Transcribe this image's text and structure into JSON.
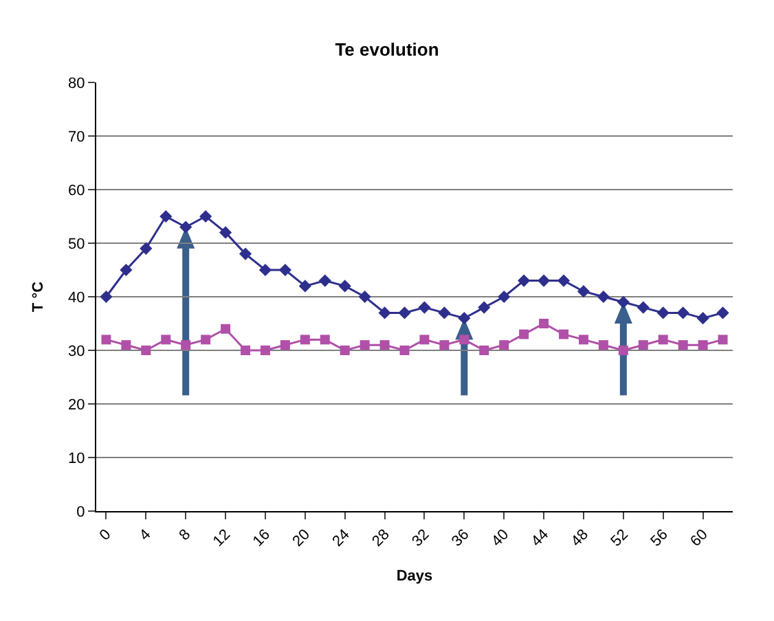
{
  "chart_data": {
    "type": "line",
    "title": "Te evolution",
    "xlabel": "Days",
    "ylabel": "T °C",
    "x": [
      0,
      2,
      4,
      6,
      8,
      10,
      12,
      14,
      16,
      18,
      20,
      22,
      24,
      26,
      28,
      30,
      32,
      34,
      36,
      38,
      40,
      42,
      44,
      46,
      48,
      50,
      52,
      54,
      56,
      58,
      60,
      62
    ],
    "series": [
      {
        "color": "#2e2f8c",
        "marker": "diamond",
        "values": [
          40,
          45,
          49,
          55,
          53,
          55,
          52,
          48,
          45,
          45,
          42,
          43,
          42,
          40,
          37,
          37,
          38,
          37,
          36,
          38,
          40,
          43,
          43,
          43,
          41,
          40,
          39,
          38,
          37,
          37,
          36,
          37
        ]
      },
      {
        "color": "#b050a8",
        "marker": "square",
        "values": [
          32,
          31,
          30,
          32,
          31,
          32,
          34,
          30,
          30,
          31,
          32,
          32,
          30,
          31,
          31,
          30,
          32,
          31,
          32,
          30,
          31,
          33,
          35,
          33,
          32,
          31,
          30,
          31,
          32,
          31,
          31,
          32
        ]
      }
    ],
    "xlim": [
      -1,
      63
    ],
    "xticks": [
      0,
      4,
      8,
      12,
      16,
      20,
      24,
      28,
      32,
      36,
      40,
      44,
      48,
      52,
      56,
      60
    ],
    "ylim": [
      0,
      80
    ],
    "yticks": [
      0,
      10,
      20,
      30,
      40,
      50,
      60,
      70,
      80
    ],
    "grid": "y",
    "ref_lines": [
      {
        "axis": "x",
        "value": 8,
        "color": "#3a5f8c"
      },
      {
        "axis": "x",
        "value": 36,
        "color": "#3a5f8c"
      },
      {
        "axis": "x",
        "value": 52,
        "color": "#3a5f8c"
      }
    ]
  }
}
